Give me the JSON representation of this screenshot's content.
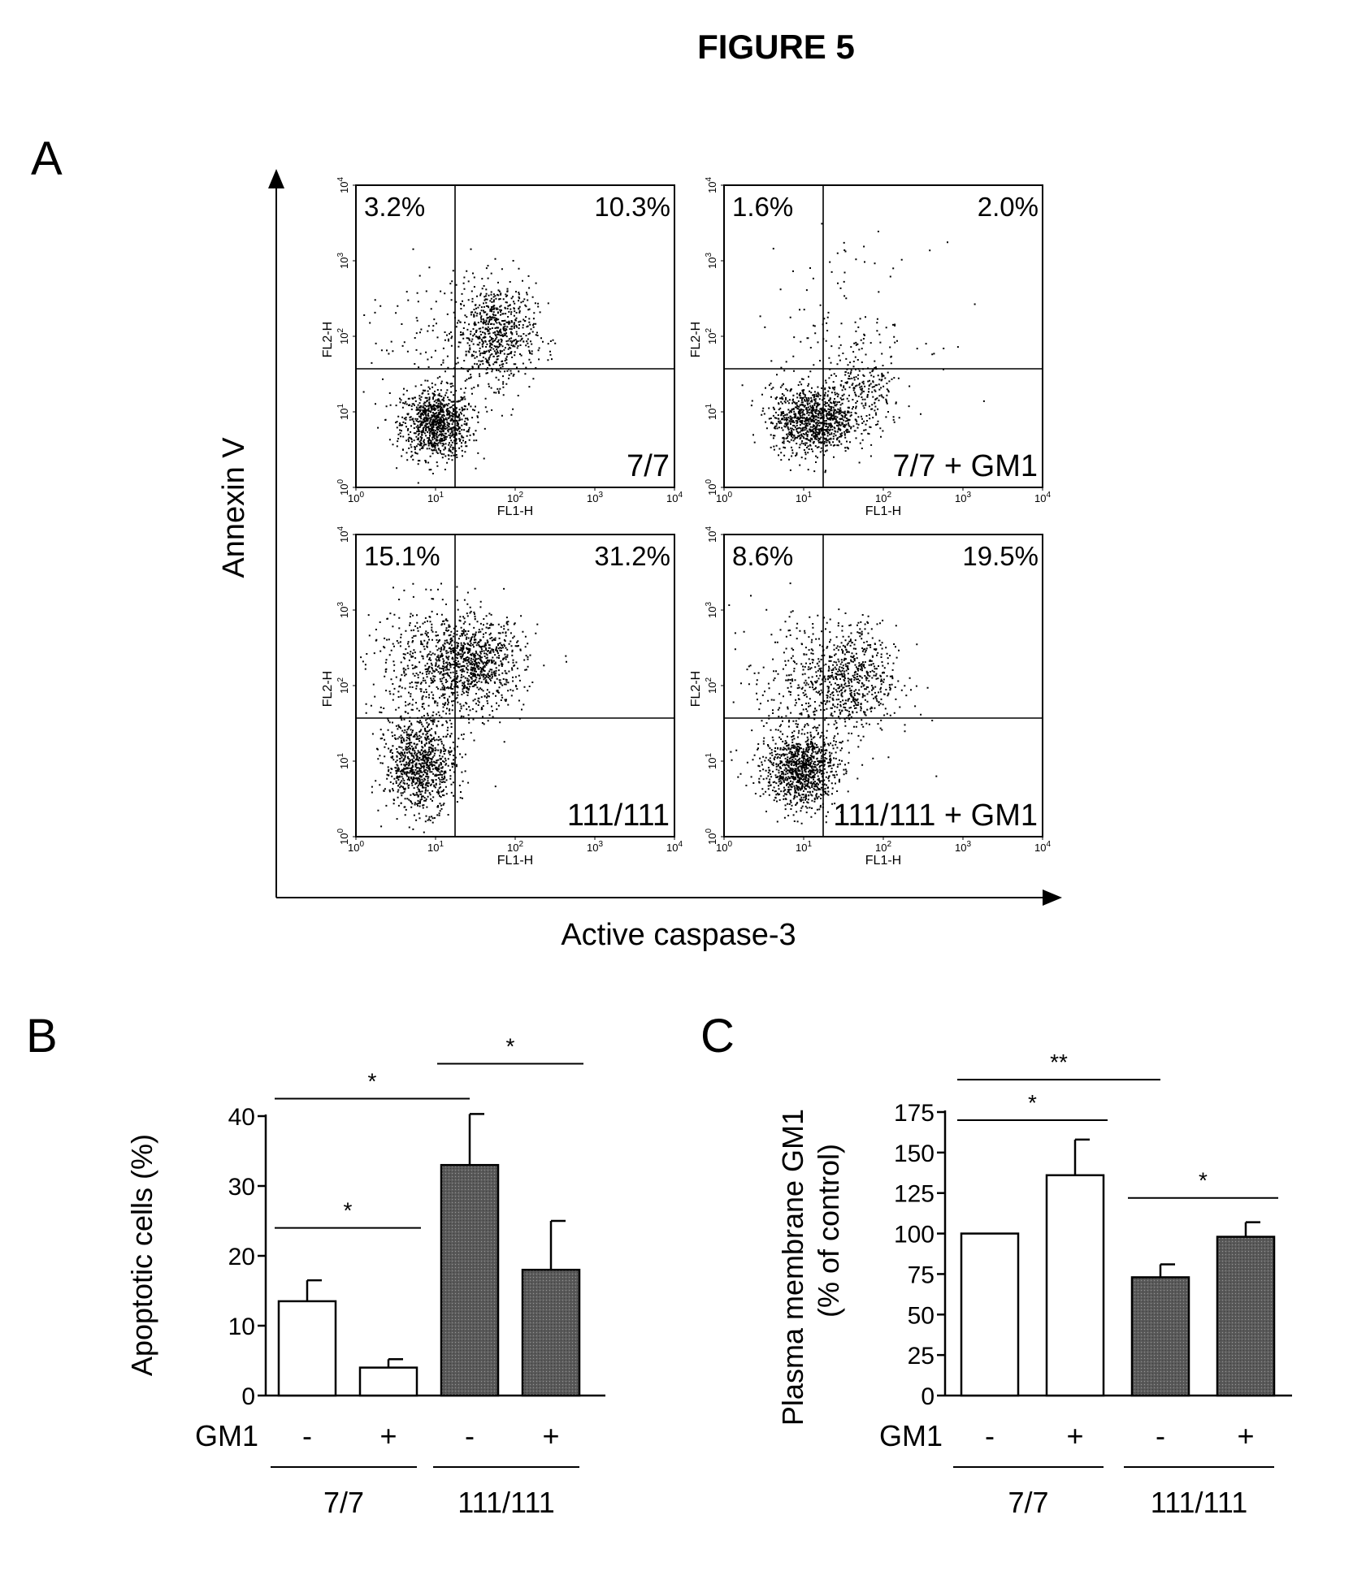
{
  "figure": {
    "title": "FIGURE 5",
    "panel_a_letter": "A",
    "panel_b_letter": "B",
    "panel_c_letter": "C"
  },
  "panel_a": {
    "y_title": "Annexin V",
    "x_title": "Active caspase-3",
    "plots": [
      {
        "sample": "7/7",
        "upper_left": "3.2%",
        "upper_right": "10.3%",
        "x_channel": "FL1-H",
        "y_channel": "FL2-H"
      },
      {
        "sample": "7/7 + GM1",
        "upper_left": "1.6%",
        "upper_right": "2.0%",
        "x_channel": "FL1-H",
        "y_channel": "FL2-H"
      },
      {
        "sample": "111/111",
        "upper_left": "15.1%",
        "upper_right": "31.2%",
        "x_channel": "FL1-H",
        "y_channel": "FL2-H"
      },
      {
        "sample": "111/111 + GM1",
        "upper_left": "8.6%",
        "upper_right": "19.5%",
        "x_channel": "FL1-H",
        "y_channel": "FL2-H"
      }
    ],
    "axis_ticks": [
      "10",
      "10",
      "10",
      "10",
      "10"
    ],
    "axis_exponents": [
      "0",
      "1",
      "2",
      "3",
      "4"
    ]
  },
  "chart_data": [
    {
      "type": "bar",
      "panel": "B",
      "ylabel": "Apoptotic cells (%)",
      "ylim": [
        0,
        40
      ],
      "yticks": [
        0,
        10,
        20,
        30,
        40
      ],
      "treatment_label": "GM1",
      "categories": [
        "-",
        "+",
        "-",
        "+"
      ],
      "groups": [
        "7/7",
        "111/111"
      ],
      "values": [
        13.5,
        4.0,
        33.0,
        18.0
      ],
      "errors": [
        3.0,
        1.2,
        7.3,
        7.0
      ],
      "colors": [
        "#ffffff",
        "#ffffff",
        "#555555",
        "#666666"
      ],
      "significance": [
        {
          "from": 0,
          "to": 1,
          "label": "*",
          "y": 24
        },
        {
          "from": 0,
          "to": 2,
          "label": "*",
          "y": 42.5
        },
        {
          "from": 2,
          "to": 3,
          "label": "*",
          "y": 47.5
        }
      ]
    },
    {
      "type": "bar",
      "panel": "C",
      "ylabel": "Plasma membrane GM1",
      "ylabel2": "(% of control)",
      "ylim": [
        0,
        175
      ],
      "yticks": [
        0,
        25,
        50,
        75,
        100,
        125,
        150,
        175
      ],
      "treatment_label": "GM1",
      "categories": [
        "-",
        "+",
        "-",
        "+"
      ],
      "groups": [
        "7/7",
        "111/111"
      ],
      "values": [
        100,
        136,
        73,
        98
      ],
      "errors": [
        0,
        22,
        8,
        9
      ],
      "colors": [
        "#ffffff",
        "#ffffff",
        "#555555",
        "#666666"
      ],
      "significance": [
        {
          "from": 0,
          "to": 1,
          "label": "*",
          "y": 170
        },
        {
          "from": 0,
          "to": 2,
          "label": "**",
          "y": 195
        },
        {
          "from": 2,
          "to": 3,
          "label": "*",
          "y": 122
        }
      ]
    }
  ]
}
